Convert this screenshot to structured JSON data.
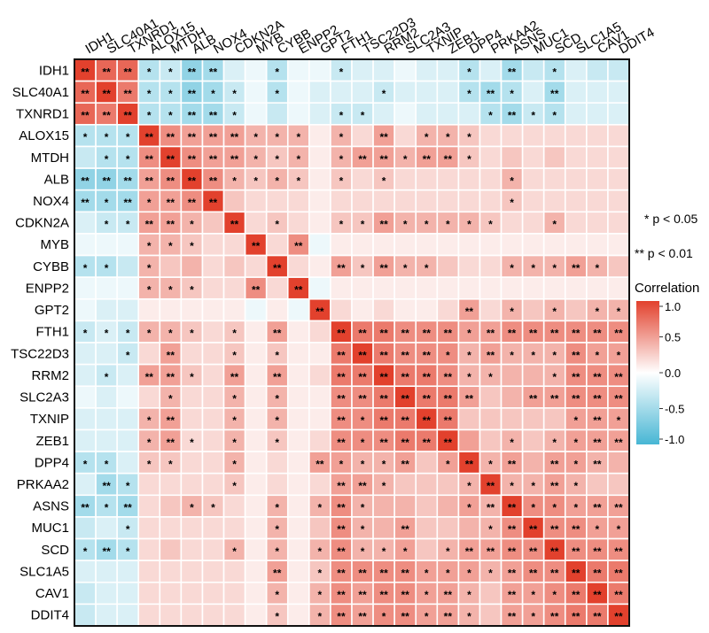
{
  "chart_data": {
    "type": "heatmap",
    "title": "",
    "genes": [
      "IDH1",
      "SLC40A1",
      "TXNRD1",
      "ALOX15",
      "MTDH",
      "ALB",
      "NOX4",
      "CDKN2A",
      "MYB",
      "CYBB",
      "ENPP2",
      "GPT2",
      "FTH1",
      "TSC22D3",
      "RRM2",
      "SLC2A3",
      "TXNIP",
      "ZEB1",
      "DPP4",
      "PRKAA2",
      "ASNS",
      "MUC1",
      "SCD",
      "SLC1A5",
      "CAV1",
      "DDIT4"
    ],
    "values": [
      [
        1.0,
        0.8,
        0.8,
        -0.4,
        -0.3,
        -0.6,
        -0.5,
        -0.2,
        -0.1,
        -0.4,
        -0.1,
        -0.1,
        -0.3,
        -0.2,
        -0.2,
        -0.1,
        -0.2,
        -0.2,
        -0.4,
        -0.2,
        -0.5,
        -0.3,
        -0.4,
        -0.2,
        -0.3,
        -0.3
      ],
      [
        0.8,
        1.0,
        0.7,
        -0.4,
        -0.4,
        -0.6,
        -0.5,
        -0.3,
        -0.1,
        -0.4,
        -0.1,
        -0.2,
        -0.2,
        -0.2,
        -0.3,
        -0.2,
        -0.2,
        -0.2,
        -0.4,
        -0.5,
        -0.4,
        -0.2,
        -0.5,
        -0.2,
        -0.2,
        -0.2
      ],
      [
        0.8,
        0.7,
        1.0,
        -0.4,
        -0.4,
        -0.5,
        -0.5,
        -0.3,
        -0.1,
        -0.3,
        -0.1,
        -0.2,
        -0.3,
        -0.3,
        -0.2,
        -0.1,
        -0.2,
        -0.2,
        -0.2,
        -0.4,
        -0.5,
        -0.3,
        -0.4,
        -0.2,
        -0.2,
        -0.2
      ],
      [
        -0.4,
        -0.4,
        -0.4,
        1.0,
        0.6,
        0.5,
        0.5,
        0.5,
        0.4,
        0.4,
        0.4,
        0.1,
        0.4,
        0.2,
        0.5,
        0.2,
        0.4,
        0.4,
        0.3,
        0.2,
        0.2,
        0.2,
        0.2,
        0.2,
        0.2,
        0.2
      ],
      [
        -0.3,
        -0.4,
        -0.4,
        0.6,
        1.0,
        0.6,
        0.5,
        0.5,
        0.4,
        0.3,
        0.4,
        0.1,
        0.4,
        0.5,
        0.5,
        0.4,
        0.5,
        0.5,
        0.3,
        0.2,
        0.3,
        0.2,
        0.3,
        0.2,
        0.2,
        0.2
      ],
      [
        -0.6,
        -0.6,
        -0.5,
        0.5,
        0.6,
        1.0,
        0.6,
        0.4,
        0.3,
        0.4,
        0.3,
        0.1,
        0.3,
        0.2,
        0.3,
        0.2,
        0.2,
        0.2,
        0.2,
        0.2,
        0.4,
        0.2,
        0.2,
        0.2,
        0.2,
        0.2
      ],
      [
        -0.5,
        -0.5,
        -0.5,
        0.5,
        0.5,
        0.6,
        1.0,
        0.3,
        0.2,
        0.2,
        0.2,
        0.1,
        0.2,
        0.2,
        0.2,
        0.2,
        0.2,
        0.2,
        0.2,
        0.2,
        0.3,
        0.2,
        0.2,
        0.2,
        0.2,
        0.2
      ],
      [
        -0.2,
        -0.3,
        -0.3,
        0.5,
        0.5,
        0.4,
        0.3,
        1.0,
        0.2,
        0.3,
        0.2,
        0.1,
        0.3,
        0.3,
        0.5,
        0.4,
        0.4,
        0.4,
        0.4,
        0.3,
        0.2,
        0.2,
        0.4,
        0.2,
        0.2,
        0.2
      ],
      [
        -0.1,
        -0.1,
        -0.1,
        0.4,
        0.4,
        0.3,
        0.2,
        0.2,
        1.0,
        0.2,
        0.6,
        -0.1,
        0.1,
        0.1,
        0.1,
        0.1,
        0.1,
        0.1,
        0.1,
        0.1,
        0.1,
        0.1,
        0.1,
        0.1,
        0.1,
        0.1
      ],
      [
        -0.4,
        -0.4,
        -0.3,
        0.4,
        0.3,
        0.4,
        0.2,
        0.3,
        0.2,
        1.0,
        0.2,
        0.1,
        0.5,
        0.3,
        0.5,
        0.4,
        0.4,
        0.3,
        0.2,
        0.2,
        0.4,
        0.4,
        0.4,
        0.5,
        0.4,
        0.3
      ],
      [
        -0.1,
        -0.1,
        -0.1,
        0.4,
        0.4,
        0.3,
        0.2,
        0.2,
        0.6,
        0.2,
        1.0,
        -0.1,
        0.1,
        0.1,
        0.1,
        0.1,
        0.1,
        0.1,
        0.1,
        0.1,
        0.1,
        0.1,
        0.1,
        0.1,
        0.1,
        0.1
      ],
      [
        -0.1,
        -0.2,
        -0.2,
        0.1,
        0.1,
        0.1,
        0.1,
        0.1,
        -0.1,
        0.1,
        -0.1,
        1.0,
        0.2,
        0.1,
        0.2,
        0.1,
        0.1,
        0.2,
        0.5,
        0.2,
        0.4,
        0.3,
        0.4,
        0.3,
        0.4,
        0.4
      ],
      [
        -0.3,
        -0.2,
        -0.3,
        0.4,
        0.4,
        0.3,
        0.2,
        0.3,
        0.1,
        0.5,
        0.1,
        0.2,
        1.0,
        0.7,
        0.7,
        0.6,
        0.6,
        0.6,
        0.5,
        0.5,
        0.6,
        0.6,
        0.6,
        0.6,
        0.6,
        0.6
      ],
      [
        -0.2,
        -0.2,
        -0.3,
        0.2,
        0.5,
        0.2,
        0.2,
        0.3,
        0.1,
        0.3,
        0.1,
        0.1,
        0.7,
        1.0,
        0.7,
        0.6,
        0.6,
        0.6,
        0.4,
        0.5,
        0.4,
        0.4,
        0.4,
        0.6,
        0.5,
        0.5
      ],
      [
        -0.2,
        -0.3,
        -0.2,
        0.5,
        0.5,
        0.3,
        0.2,
        0.5,
        0.1,
        0.5,
        0.1,
        0.2,
        0.7,
        0.7,
        1.0,
        0.7,
        0.7,
        0.6,
        0.4,
        0.4,
        0.4,
        0.4,
        0.4,
        0.6,
        0.6,
        0.6
      ],
      [
        -0.1,
        -0.2,
        -0.1,
        0.2,
        0.4,
        0.2,
        0.2,
        0.4,
        0.1,
        0.4,
        0.1,
        0.1,
        0.6,
        0.6,
        0.7,
        1.0,
        0.7,
        0.7,
        0.5,
        0.3,
        0.4,
        0.5,
        0.5,
        0.6,
        0.6,
        0.6
      ],
      [
        -0.2,
        -0.2,
        -0.2,
        0.4,
        0.5,
        0.2,
        0.2,
        0.4,
        0.1,
        0.4,
        0.1,
        0.1,
        0.6,
        0.6,
        0.7,
        0.7,
        1.0,
        0.7,
        0.3,
        0.3,
        0.3,
        0.3,
        0.3,
        0.5,
        0.5,
        0.5
      ],
      [
        -0.2,
        -0.2,
        -0.2,
        0.4,
        0.5,
        0.2,
        0.2,
        0.4,
        0.1,
        0.3,
        0.1,
        0.2,
        0.6,
        0.6,
        0.6,
        0.7,
        0.7,
        1.0,
        0.5,
        0.3,
        0.4,
        0.3,
        0.4,
        0.5,
        0.5,
        0.5
      ],
      [
        -0.4,
        -0.4,
        -0.2,
        0.3,
        0.3,
        0.2,
        0.2,
        0.4,
        0.1,
        0.2,
        0.1,
        0.5,
        0.5,
        0.4,
        0.4,
        0.5,
        0.3,
        0.5,
        1.0,
        0.4,
        0.5,
        0.4,
        0.5,
        0.5,
        0.4,
        0.4
      ],
      [
        -0.2,
        -0.5,
        -0.4,
        0.2,
        0.2,
        0.2,
        0.2,
        0.3,
        0.1,
        0.2,
        0.1,
        0.2,
        0.5,
        0.5,
        0.4,
        0.3,
        0.3,
        0.3,
        0.4,
        1.0,
        0.4,
        0.4,
        0.5,
        0.4,
        0.3,
        0.3
      ],
      [
        -0.5,
        -0.4,
        -0.5,
        0.2,
        0.3,
        0.4,
        0.3,
        0.2,
        0.1,
        0.4,
        0.1,
        0.4,
        0.6,
        0.4,
        0.4,
        0.4,
        0.3,
        0.4,
        0.5,
        0.4,
        1.0,
        0.6,
        0.6,
        0.5,
        0.5,
        0.5
      ],
      [
        -0.3,
        -0.2,
        -0.3,
        0.2,
        0.2,
        0.2,
        0.2,
        0.2,
        0.1,
        0.4,
        0.1,
        0.3,
        0.6,
        0.4,
        0.4,
        0.5,
        0.3,
        0.3,
        0.4,
        0.4,
        0.6,
        1.0,
        0.6,
        0.6,
        0.5,
        0.5
      ],
      [
        -0.4,
        -0.5,
        -0.4,
        0.2,
        0.3,
        0.2,
        0.2,
        0.4,
        0.1,
        0.4,
        0.1,
        0.4,
        0.6,
        0.4,
        0.4,
        0.5,
        0.3,
        0.4,
        0.5,
        0.5,
        0.6,
        0.6,
        1.0,
        0.6,
        0.6,
        0.6
      ],
      [
        -0.2,
        -0.2,
        -0.2,
        0.2,
        0.2,
        0.2,
        0.2,
        0.2,
        0.1,
        0.5,
        0.1,
        0.3,
        0.6,
        0.6,
        0.6,
        0.6,
        0.5,
        0.5,
        0.5,
        0.4,
        0.5,
        0.6,
        0.6,
        1.0,
        0.7,
        0.7
      ],
      [
        -0.3,
        -0.2,
        -0.2,
        0.2,
        0.2,
        0.2,
        0.2,
        0.2,
        0.1,
        0.4,
        0.1,
        0.4,
        0.6,
        0.5,
        0.6,
        0.6,
        0.5,
        0.5,
        0.4,
        0.3,
        0.5,
        0.5,
        0.6,
        0.7,
        1.0,
        0.7
      ],
      [
        -0.3,
        -0.2,
        -0.2,
        0.2,
        0.2,
        0.2,
        0.2,
        0.2,
        0.1,
        0.3,
        0.1,
        0.4,
        0.6,
        0.5,
        0.6,
        0.6,
        0.5,
        0.5,
        0.4,
        0.3,
        0.5,
        0.5,
        0.6,
        0.7,
        0.7,
        1.0
      ]
    ],
    "significance": [
      "** ** ** * * ** ** - - * - - * - - - - - * - ** - * - - -",
      "** ** ** * * ** * * - * - - - - * - - - * ** * - ** - - -",
      "** ** ** * * ** ** * - - - - * * - - - - - * ** * * - - -",
      "* * * ** ** ** ** ** * * * - * - ** - * * * - - - - - - -",
      "- * * ** ** ** ** ** * * * - * ** ** * ** ** * - - - - - - -",
      "** ** ** ** ** ** ** * * * * - * - * - - - - - * - - - - -",
      "** * ** * ** ** ** - - - - - - - - - - - - - * - - - - -",
      "- * * ** ** * - ** - * - - * * ** * * * * * - - * - - -",
      "- - - * * * - - ** - ** - - - - - - - - - - - - - - -",
      "* * - * - - - - - ** - - ** * ** * * - - - * * * ** * -",
      "- - - * * * - - ** - ** - - - - - - - - - - - - - - -",
      "- - - - - - - - - - - ** - - - - - - ** - * - * - * *",
      "* * * * * * - * - ** - - ** ** ** ** ** ** * ** ** ** ** ** ** **",
      "- - * - ** - - * - * - - ** ** ** ** ** * * ** * * * ** * *",
      "- * - ** ** * - ** - ** - - ** ** ** ** ** ** * * - - * ** ** **",
      "- - - - * - - * - * - - ** ** ** ** ** ** ** - - ** ** ** ** **",
      "- - - * ** - - * - * - - ** * ** ** ** ** - - - - - * ** *",
      "- - - * ** * - * - * - - ** * ** ** ** ** - - * - * * ** **",
      "* * - * * - - * - - - ** * * * ** - * ** * ** - ** * ** -",
      "- ** * - - - - * - - - - ** ** * - - - * ** * * ** * - -",
      "** * ** - - * * - - * - * ** * - - - - * ** ** * * * ** **",
      "- - * - - - - - - * - - ** * - ** - - - * ** ** ** ** * *",
      "* ** * - - - - * - * - * ** * * * - * ** ** ** ** ** ** ** **",
      "- - - - - - - - - ** - * ** ** ** ** * * * * ** ** ** ** ** **",
      "- - - - - - - - - * - * ** ** ** ** * ** * - ** * * ** ** **",
      "- - - - - - - - - * - * ** ** * ** * ** * - ** * ** ** ** **"
    ],
    "color_scale": {
      "min": -1.0,
      "max": 1.0,
      "low": "#47b6d4",
      "mid": "#ffffff",
      "high": "#e2412d"
    },
    "legend": {
      "title": "Correlation",
      "ticks": [
        1.0,
        0.5,
        0.0,
        -0.5,
        -1.0
      ],
      "tick_labels": [
        "1.0",
        "0.5",
        "0.0",
        "-0.5",
        "-1.0"
      ],
      "placement": "right"
    },
    "significance_key": [
      {
        "symbol": "*",
        "text": "* p < 0.05"
      },
      {
        "symbol": "**",
        "text": "** p < 0.01"
      }
    ]
  }
}
